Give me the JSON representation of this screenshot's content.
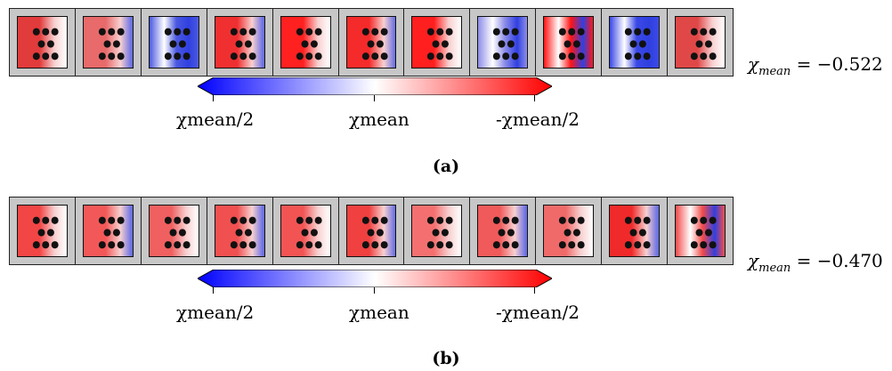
{
  "panels": [
    {
      "id": "a",
      "caption": "(a)",
      "chi_symbol": "χ",
      "chi_sub": "mean",
      "chi_value": "= −0.522",
      "cell_colors": [
        "#e23b3b",
        "#e86a6a",
        "#4a58e0",
        "#f03030",
        "#ff2020",
        "#f52a2a",
        "#ff1f1f",
        "#8c8ce8",
        "#ff1515",
        "#3a48e6",
        "#e04848"
      ],
      "mixed_cells": [
        2,
        7,
        8,
        9
      ]
    },
    {
      "id": "b",
      "caption": "(b)",
      "chi_symbol": "χ",
      "chi_sub": "mean",
      "chi_value": "= −0.470",
      "cell_colors": [
        "#f24545",
        "#f25858",
        "#f06060",
        "#f05050",
        "#f25454",
        "#f04040",
        "#f47070",
        "#f05a5a",
        "#f06a6a",
        "#f02a2a",
        "#f24a4a"
      ],
      "mixed_cells": [
        10
      ]
    }
  ],
  "colorbar": {
    "low_color": "#0000ff",
    "mid_color": "#ffffff",
    "high_color": "#ff0000",
    "tick_left": "χmean/2",
    "tick_mid": "χmean",
    "tick_right": "-χmean/2"
  }
}
